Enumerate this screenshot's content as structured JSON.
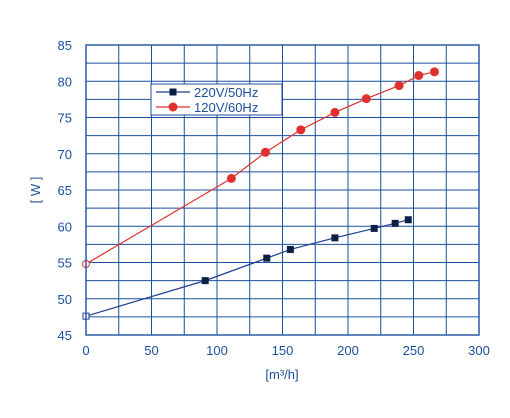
{
  "chart_data": {
    "type": "line",
    "title": "",
    "xlabel": "[m³/h]",
    "ylabel": "[ W ]",
    "xlim": [
      0,
      300
    ],
    "ylim": [
      45,
      85
    ],
    "x_ticks": [
      0,
      50,
      100,
      150,
      200,
      250,
      300
    ],
    "y_ticks": [
      45,
      50,
      55,
      60,
      65,
      70,
      75,
      80,
      85
    ],
    "x_tick_labels": [
      "0",
      "50",
      "100",
      "150",
      "200",
      "250",
      "300"
    ],
    "y_tick_labels": [
      "45",
      "50",
      "55",
      "60",
      "65",
      "70",
      "75",
      "80",
      "85"
    ],
    "grid": true,
    "legend_position": "upper-left",
    "series": [
      {
        "name": "220V/50Hz",
        "color": "#1b3f8f",
        "marker": "square",
        "x": [
          0,
          91,
          138,
          156,
          190,
          220,
          236,
          246
        ],
        "y": [
          47.6,
          52.5,
          55.6,
          56.8,
          58.4,
          59.7,
          60.4,
          60.9
        ]
      },
      {
        "name": "120V/60Hz",
        "color": "#e0312f",
        "marker": "circle",
        "x": [
          0,
          111,
          137,
          164,
          190,
          214,
          239,
          254,
          266
        ],
        "y": [
          54.8,
          66.6,
          70.2,
          73.3,
          75.7,
          77.6,
          79.4,
          80.8,
          81.3
        ]
      }
    ]
  }
}
